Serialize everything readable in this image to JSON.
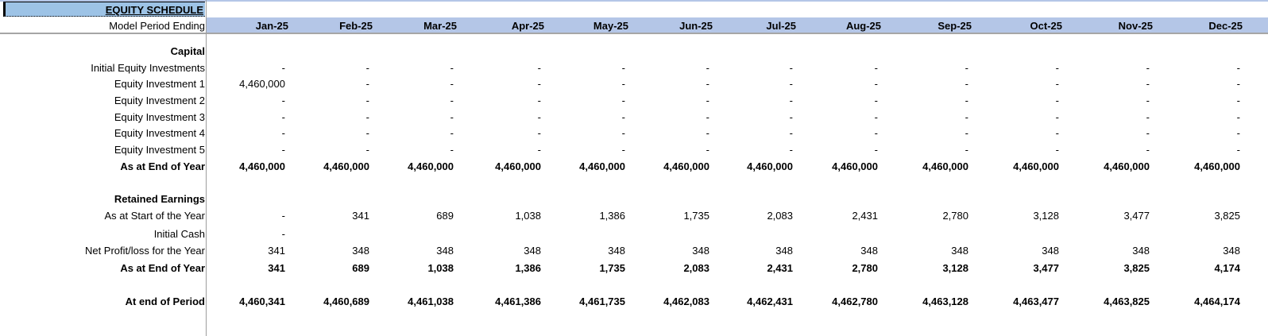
{
  "sheet": {
    "title": "EQUITY SCHEDULE",
    "period_label": "Model Period Ending",
    "periods": [
      "Jan-25",
      "Feb-25",
      "Mar-25",
      "Apr-25",
      "May-25",
      "Jun-25",
      "Jul-25",
      "Aug-25",
      "Sep-25",
      "Oct-25",
      "Nov-25",
      "Dec-25"
    ],
    "colors": {
      "header_fill": "#b4c6e7",
      "title_fill": "#9dc3e6",
      "rule": "#a6a6a6"
    }
  },
  "capital": {
    "heading": "Capital",
    "rows": [
      {
        "label": "Initial Equity Investments",
        "bold": false,
        "values": [
          "-",
          "-",
          "-",
          "-",
          "-",
          "-",
          "-",
          "-",
          "-",
          "-",
          "-",
          "-"
        ]
      },
      {
        "label": "Equity Investment 1",
        "bold": false,
        "values": [
          "4,460,000",
          "-",
          "-",
          "-",
          "-",
          "-",
          "-",
          "-",
          "-",
          "-",
          "-",
          "-"
        ]
      },
      {
        "label": "Equity Investment 2",
        "bold": false,
        "values": [
          "-",
          "-",
          "-",
          "-",
          "-",
          "-",
          "-",
          "-",
          "-",
          "-",
          "-",
          "-"
        ]
      },
      {
        "label": "Equity Investment 3",
        "bold": false,
        "values": [
          "-",
          "-",
          "-",
          "-",
          "-",
          "-",
          "-",
          "-",
          "-",
          "-",
          "-",
          "-"
        ]
      },
      {
        "label": "Equity Investment 4",
        "bold": false,
        "values": [
          "-",
          "-",
          "-",
          "-",
          "-",
          "-",
          "-",
          "-",
          "-",
          "-",
          "-",
          "-"
        ]
      },
      {
        "label": "Equity Investment 5",
        "bold": false,
        "values": [
          "-",
          "-",
          "-",
          "-",
          "-",
          "-",
          "-",
          "-",
          "-",
          "-",
          "-",
          "-"
        ]
      },
      {
        "label": "As at End of Year",
        "bold": true,
        "values": [
          "4,460,000",
          "4,460,000",
          "4,460,000",
          "4,460,000",
          "4,460,000",
          "4,460,000",
          "4,460,000",
          "4,460,000",
          "4,460,000",
          "4,460,000",
          "4,460,000",
          "4,460,000"
        ]
      }
    ]
  },
  "retained": {
    "heading": "Retained Earnings",
    "rows": [
      {
        "label": "As at Start of the Year",
        "bold": false,
        "values": [
          "-",
          "341",
          "689",
          "1,038",
          "1,386",
          "1,735",
          "2,083",
          "2,431",
          "2,780",
          "3,128",
          "3,477",
          "3,825"
        ]
      },
      {
        "label": "Initial Cash",
        "bold": false,
        "values": [
          "-",
          "",
          "",
          "",
          "",
          "",
          "",
          "",
          "",
          "",
          "",
          ""
        ]
      },
      {
        "label": "Net Profit/loss for the Year",
        "bold": false,
        "values": [
          "341",
          "348",
          "348",
          "348",
          "348",
          "348",
          "348",
          "348",
          "348",
          "348",
          "348",
          "348"
        ]
      },
      {
        "label": "As at End of Year",
        "bold": true,
        "values": [
          "341",
          "689",
          "1,038",
          "1,386",
          "1,735",
          "2,083",
          "2,431",
          "2,780",
          "3,128",
          "3,477",
          "3,825",
          "4,174"
        ]
      }
    ]
  },
  "total": {
    "label": "At end of Period",
    "values": [
      "4,460,341",
      "4,460,689",
      "4,461,038",
      "4,461,386",
      "4,461,735",
      "4,462,083",
      "4,462,431",
      "4,462,780",
      "4,463,128",
      "4,463,477",
      "4,463,825",
      "4,464,174"
    ]
  }
}
